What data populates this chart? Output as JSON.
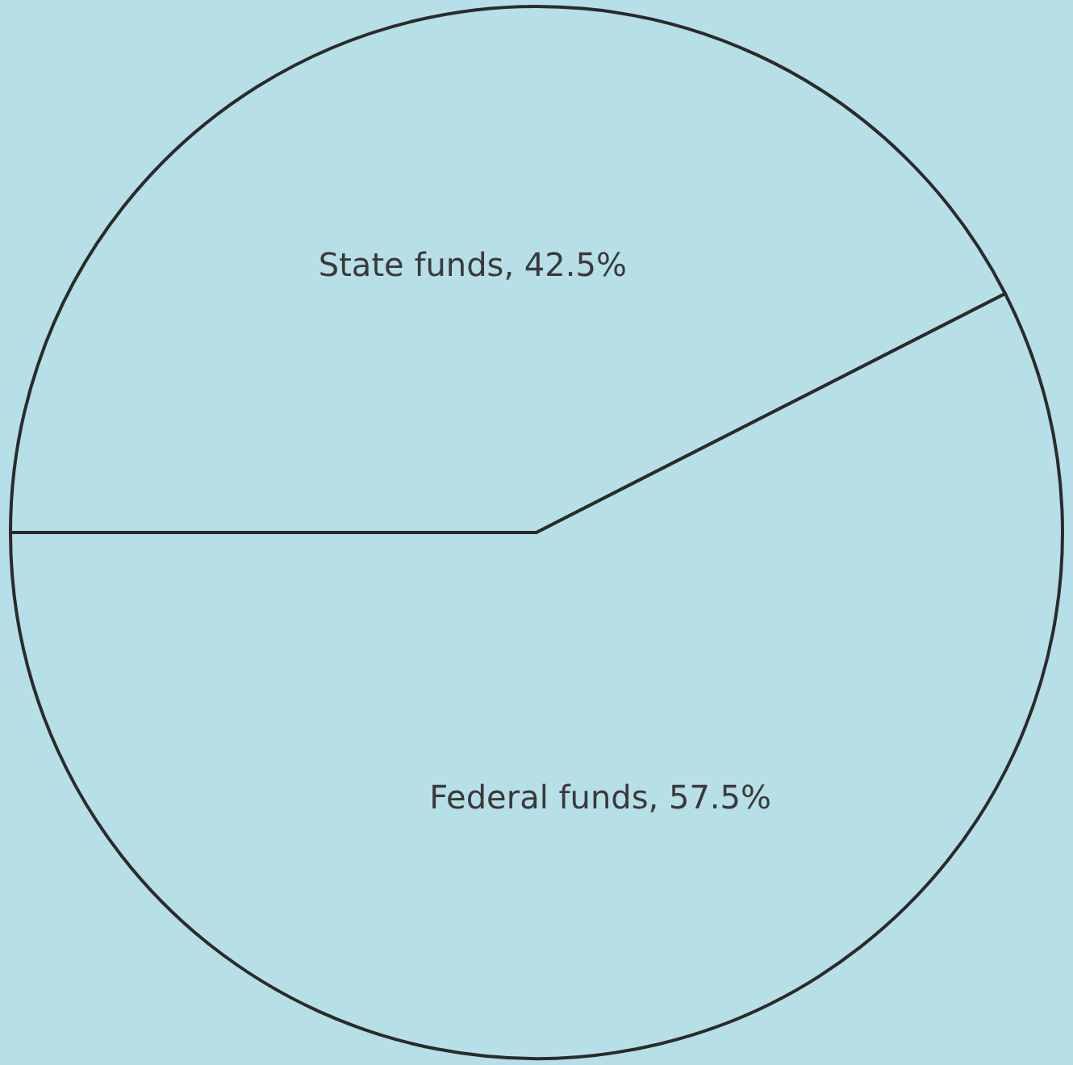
{
  "chart_data": {
    "type": "pie",
    "categories": [
      "State funds, 42.5%",
      "Federal funds, 57.5%"
    ],
    "values": [
      42.5,
      57.5
    ],
    "colors": [
      "#b7dfe8",
      "#b7dfe8"
    ],
    "legend": false
  }
}
